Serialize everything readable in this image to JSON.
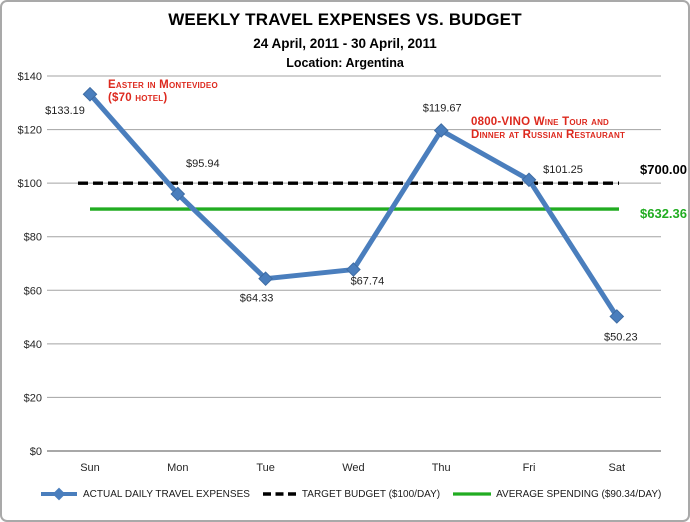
{
  "chart_data": {
    "type": "line",
    "title": "WEEKLY TRAVEL EXPENSES VS. BUDGET",
    "subtitle": "24 April, 2011 - 30 April, 2011",
    "location": "Location: Argentina",
    "xlabel": "",
    "ylabel": "",
    "categories": [
      "Sun",
      "Mon",
      "Tue",
      "Wed",
      "Thu",
      "Fri",
      "Sat"
    ],
    "series": [
      {
        "name": "ACTUAL DAILY TRAVEL EXPENSES",
        "kind": "data",
        "values": [
          133.19,
          95.94,
          64.33,
          67.74,
          119.67,
          101.25,
          50.23
        ],
        "data_labels": [
          "$133.19",
          "$95.94",
          "$64.33",
          "$67.74",
          "$119.67",
          "$101.25",
          "$50.23"
        ],
        "color": "#4A7EBD",
        "marker": "diamond"
      },
      {
        "name": "TARGET BUDGET ($100/DAY)",
        "kind": "constant",
        "value": 100,
        "color": "#000000",
        "dashed": true
      },
      {
        "name": "AVERAGE SPENDING ($90.34/DAY)",
        "kind": "constant",
        "value": 90.34,
        "color": "#21AC21",
        "dashed": false
      }
    ],
    "ylim": [
      0,
      140
    ],
    "ytick_step": 20,
    "ytick_labels": [
      "$0",
      "$20",
      "$40",
      "$60",
      "$80",
      "$100",
      "$120",
      "$140"
    ],
    "grid": true,
    "legend_position": "bottom",
    "right_labels": [
      {
        "text": "$700.00",
        "color": "#000000"
      },
      {
        "text": "$632.36",
        "color": "#21AC21"
      }
    ],
    "annotations": [
      {
        "lines": [
          "Easter in Montevideo",
          "($70 hotel)"
        ],
        "color": "#DD291E"
      },
      {
        "lines": [
          "0800-VINO Wine Tour and",
          "Dinner at Russian Restaurant"
        ],
        "color": "#DD291E"
      }
    ]
  }
}
